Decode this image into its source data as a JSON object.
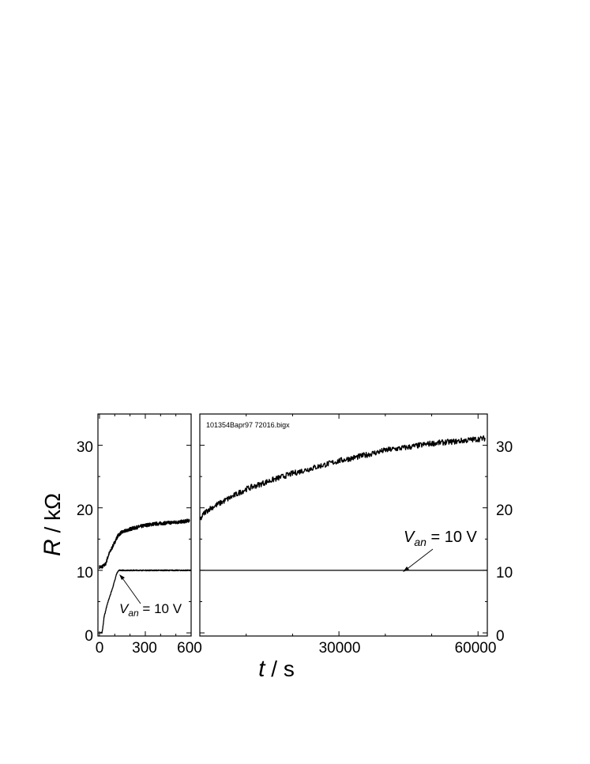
{
  "figure": {
    "ylabel_symbol": "R",
    "ylabel_unit": " / kΩ",
    "xlabel_symbol": "t",
    "xlabel_unit": " / s",
    "file_note": "101354Bapr97 72016.bigx",
    "colors": {
      "line": "#000000",
      "background": "#ffffff"
    }
  },
  "chart_data": [
    {
      "type": "line",
      "panel": "left",
      "xlim": [
        -10,
        600
      ],
      "ylim": [
        -0.5,
        35
      ],
      "x_ticks": [
        0,
        300,
        600
      ],
      "x_tick_labels": [
        "0",
        "300",
        "600"
      ],
      "y_ticks": [
        0,
        10,
        20,
        30
      ],
      "y_tick_labels": [
        "0",
        "10",
        "20",
        "30"
      ],
      "grid": false,
      "series": [
        {
          "x": [
            0,
            20,
            40,
            60,
            80,
            100,
            120,
            140,
            160,
            180,
            200,
            250,
            300,
            350,
            400,
            450,
            500,
            550,
            590
          ],
          "values": [
            10.5,
            10.6,
            11.0,
            12.5,
            13.5,
            14.5,
            15.5,
            16.0,
            16.2,
            16.4,
            16.6,
            16.9,
            17.2,
            17.4,
            17.5,
            17.6,
            17.7,
            17.8,
            18.0
          ]
        },
        {
          "x": [
            0,
            15,
            20,
            30,
            50,
            70,
            90,
            110,
            120,
            130,
            140,
            600
          ],
          "values": [
            0,
            0,
            0.5,
            2.5,
            4.5,
            6.0,
            7.5,
            9.3,
            9.8,
            10,
            10,
            10
          ]
        }
      ],
      "annotations": [
        {
          "text": "V",
          "subscript": "an",
          "suffix": " = 10 V",
          "points_to": [
            120,
            9.8
          ]
        }
      ]
    },
    {
      "type": "line",
      "panel": "right",
      "xlim": [
        0,
        62000
      ],
      "ylim": [
        -0.5,
        35
      ],
      "x_ticks": [
        30000,
        60000
      ],
      "x_tick_labels": [
        "30000",
        "60000"
      ],
      "y_ticks": [
        0,
        10,
        20,
        30
      ],
      "y_tick_labels": [
        "0",
        "10",
        "20",
        "30"
      ],
      "grid": false,
      "series": [
        {
          "x": [
            0,
            1000,
            2000,
            4000,
            6000,
            8000,
            10000,
            12000,
            15000,
            20000,
            25000,
            30000,
            35000,
            40000,
            45000,
            50000,
            55000,
            60000,
            61500
          ],
          "values": [
            18.0,
            19.2,
            19.8,
            20.6,
            21.4,
            22.2,
            23.0,
            23.5,
            24.3,
            25.5,
            26.5,
            27.5,
            28.3,
            29.2,
            29.7,
            30.3,
            30.6,
            31.0,
            31.1
          ]
        },
        {
          "x": [
            0,
            62000
          ],
          "values": [
            10,
            10
          ]
        }
      ],
      "annotations": [
        {
          "text": "V",
          "subscript": "an",
          "suffix": " = 10 V",
          "points_to": [
            43000,
            10
          ]
        }
      ]
    }
  ]
}
